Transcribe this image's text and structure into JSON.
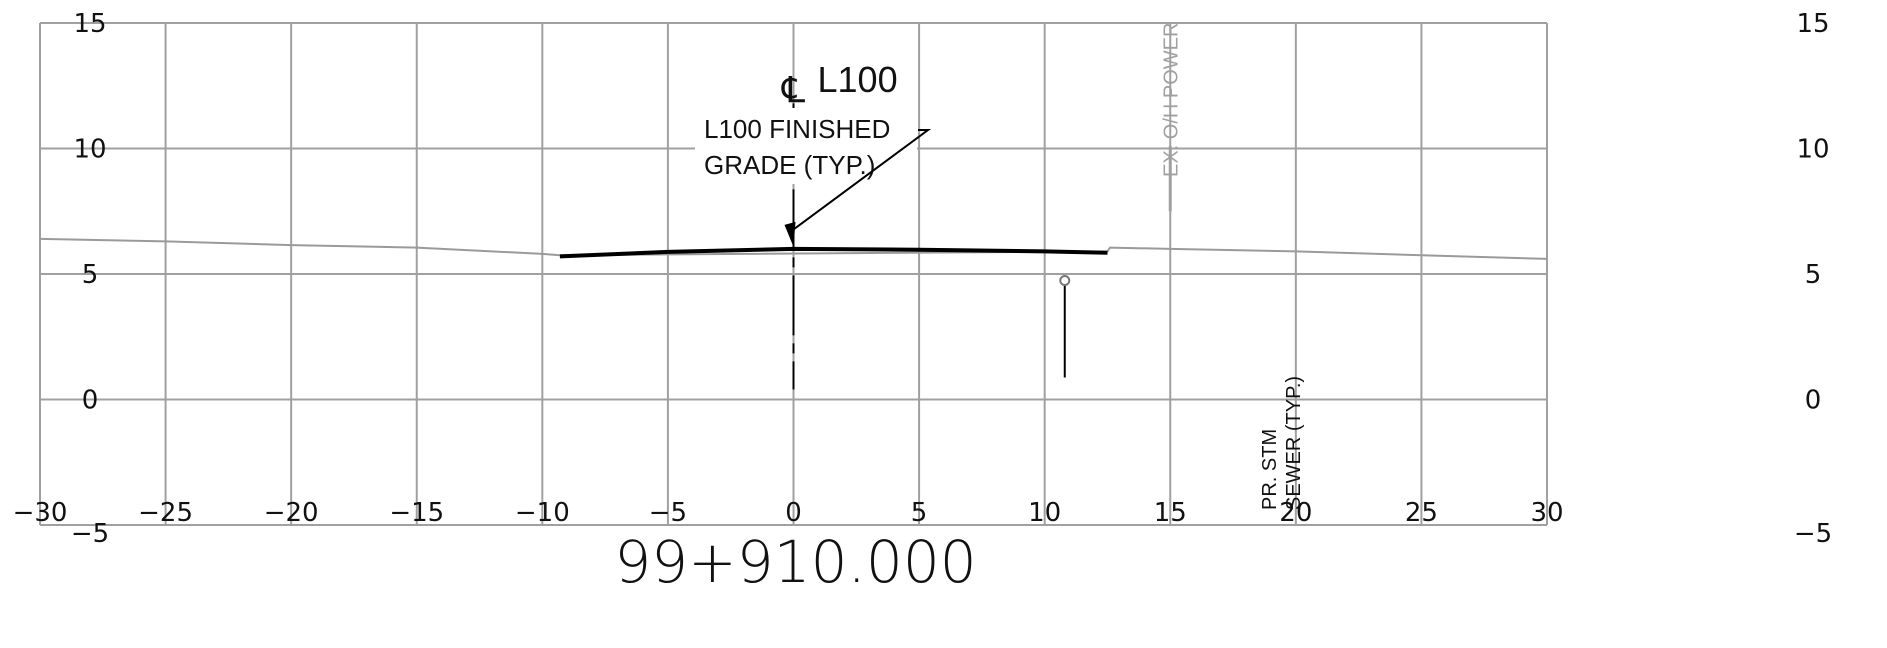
{
  "section": {
    "station": "99+910.000",
    "centerline_symbol": "℄",
    "centerline_name": "L100",
    "finished_grade_note": [
      "L100 FINISHED",
      "GRADE (TYP.)"
    ],
    "storm_sewer_note": [
      "PR. STM",
      "SEWER (TYP.)"
    ],
    "power_note": "EX. O/H POWER"
  },
  "chart_data": {
    "type": "line",
    "x_ticks": [
      -30,
      -25,
      -20,
      -15,
      -10,
      -5,
      0,
      5,
      10,
      15,
      20,
      25,
      30
    ],
    "y_ticks": [
      -5,
      0,
      5,
      10,
      15
    ],
    "x_tick_labels": [
      "−30",
      "−25",
      "−20",
      "−15",
      "−10",
      "−5",
      "0",
      "5",
      "10",
      "15",
      "20",
      "25",
      "30"
    ],
    "y_tick_labels": [
      "−5",
      "0",
      "5",
      "10",
      "15"
    ],
    "xlim": [
      -30,
      30
    ],
    "ylim": [
      -5,
      15
    ],
    "grid": true,
    "colors": {
      "grid": "#a0a0a0",
      "existing_ground": "#9a9a9a",
      "finished_grade": "#000000",
      "annotation_gray": "#a0a0a0"
    },
    "series": [
      {
        "name": "",
        "role": "existing-ground",
        "x": [
          -30,
          -25,
          -20,
          -15,
          -10,
          -9.3,
          12.5,
          12.6,
          15,
          20,
          25,
          30
        ],
        "y": [
          6.4,
          6.3,
          6.15,
          6.05,
          5.8,
          5.75,
          5.9,
          6.05,
          6.0,
          5.9,
          5.75,
          5.6
        ]
      },
      {
        "name": "",
        "role": "finished-grade",
        "x": [
          -9.3,
          -5,
          0,
          5,
          10,
          12.5
        ],
        "y": [
          5.7,
          5.88,
          6.0,
          5.97,
          5.9,
          5.85
        ]
      }
    ],
    "centerline": {
      "x": 0,
      "y_from": 0.4,
      "y_to": 11.8
    },
    "storm_sewer": {
      "x": 10.8,
      "y": 4.7
    },
    "power_pole": {
      "x": 15,
      "y_from": 7.5,
      "y_to": 10.1
    }
  }
}
